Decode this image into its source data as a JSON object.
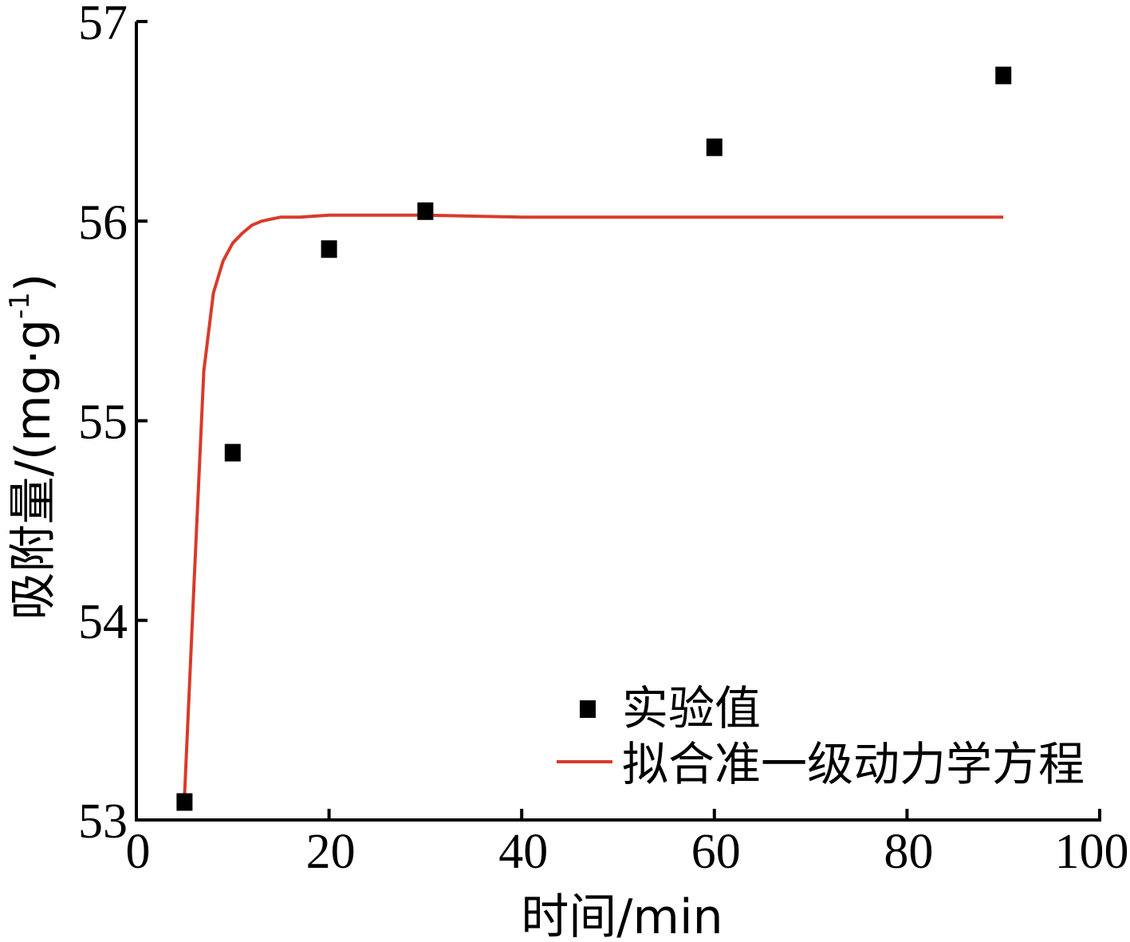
{
  "chart_data": {
    "type": "scatter",
    "xlabel": "时间/min",
    "ylabel": "吸附量/(mg·g",
    "ylabel_sup": "-1",
    "ylabel_tail": ")",
    "xlim": [
      0,
      100
    ],
    "ylim": [
      53,
      57
    ],
    "xticks": [
      0,
      20,
      40,
      60,
      80,
      100
    ],
    "yticks": [
      53,
      54,
      55,
      56,
      57
    ],
    "grid": false,
    "legend_position": "bottom-right",
    "series": [
      {
        "name": "实验值",
        "type": "scatter",
        "color": "#000000",
        "marker": "square",
        "x": [
          5,
          10,
          20,
          30,
          60,
          90
        ],
        "y": [
          53.09,
          54.84,
          55.86,
          56.05,
          56.37,
          56.73
        ]
      },
      {
        "name": "拟合准一级动力学方程",
        "type": "line",
        "color": "#d93a2b",
        "x": [
          5,
          6,
          7,
          8,
          9,
          10,
          11,
          12,
          13,
          14,
          15,
          17,
          20,
          25,
          30,
          40,
          50,
          60,
          70,
          80,
          90
        ],
        "y": [
          53.12,
          54.2,
          55.25,
          55.64,
          55.8,
          55.89,
          55.94,
          55.98,
          56.0,
          56.01,
          56.02,
          56.02,
          56.03,
          56.03,
          56.03,
          56.02,
          56.02,
          56.02,
          56.02,
          56.02,
          56.02
        ]
      }
    ]
  }
}
